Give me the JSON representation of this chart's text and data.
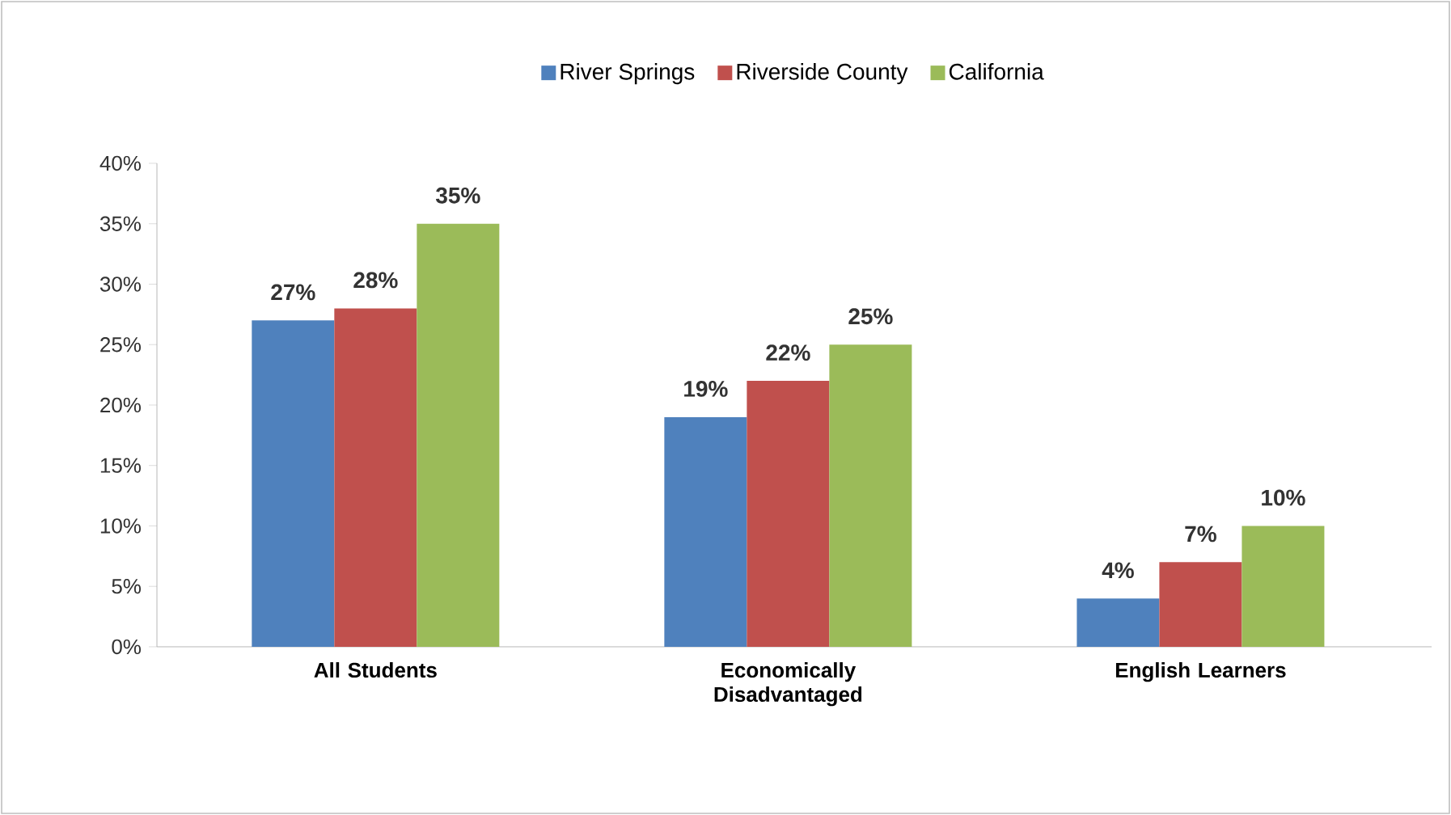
{
  "chart_data": {
    "type": "bar",
    "categories": [
      "All Students",
      "Economically Disadvantaged",
      "English Learners"
    ],
    "series": [
      {
        "name": "River Springs",
        "color": "#4f81bd",
        "values": [
          27,
          19,
          4
        ],
        "value_labels": [
          "27%",
          "19%",
          "4%"
        ]
      },
      {
        "name": "Riverside County",
        "color": "#c0504d",
        "values": [
          28,
          22,
          7
        ],
        "value_labels": [
          "28%",
          "22%",
          "7%"
        ]
      },
      {
        "name": "California",
        "color": "#9bbb59",
        "values": [
          35,
          25,
          10
        ],
        "value_labels": [
          "35%",
          "25%",
          "10%"
        ]
      }
    ],
    "ylim": [
      0,
      40
    ],
    "yticks": [
      {
        "value": 0,
        "label": "0%"
      },
      {
        "value": 5,
        "label": "5%"
      },
      {
        "value": 10,
        "label": "10%"
      },
      {
        "value": 15,
        "label": "15%"
      },
      {
        "value": 20,
        "label": "20%"
      },
      {
        "value": 25,
        "label": "25%"
      },
      {
        "value": 30,
        "label": "30%"
      },
      {
        "value": 35,
        "label": "35%"
      },
      {
        "value": 40,
        "label": "40%"
      }
    ],
    "grid": false,
    "legend": "top"
  }
}
